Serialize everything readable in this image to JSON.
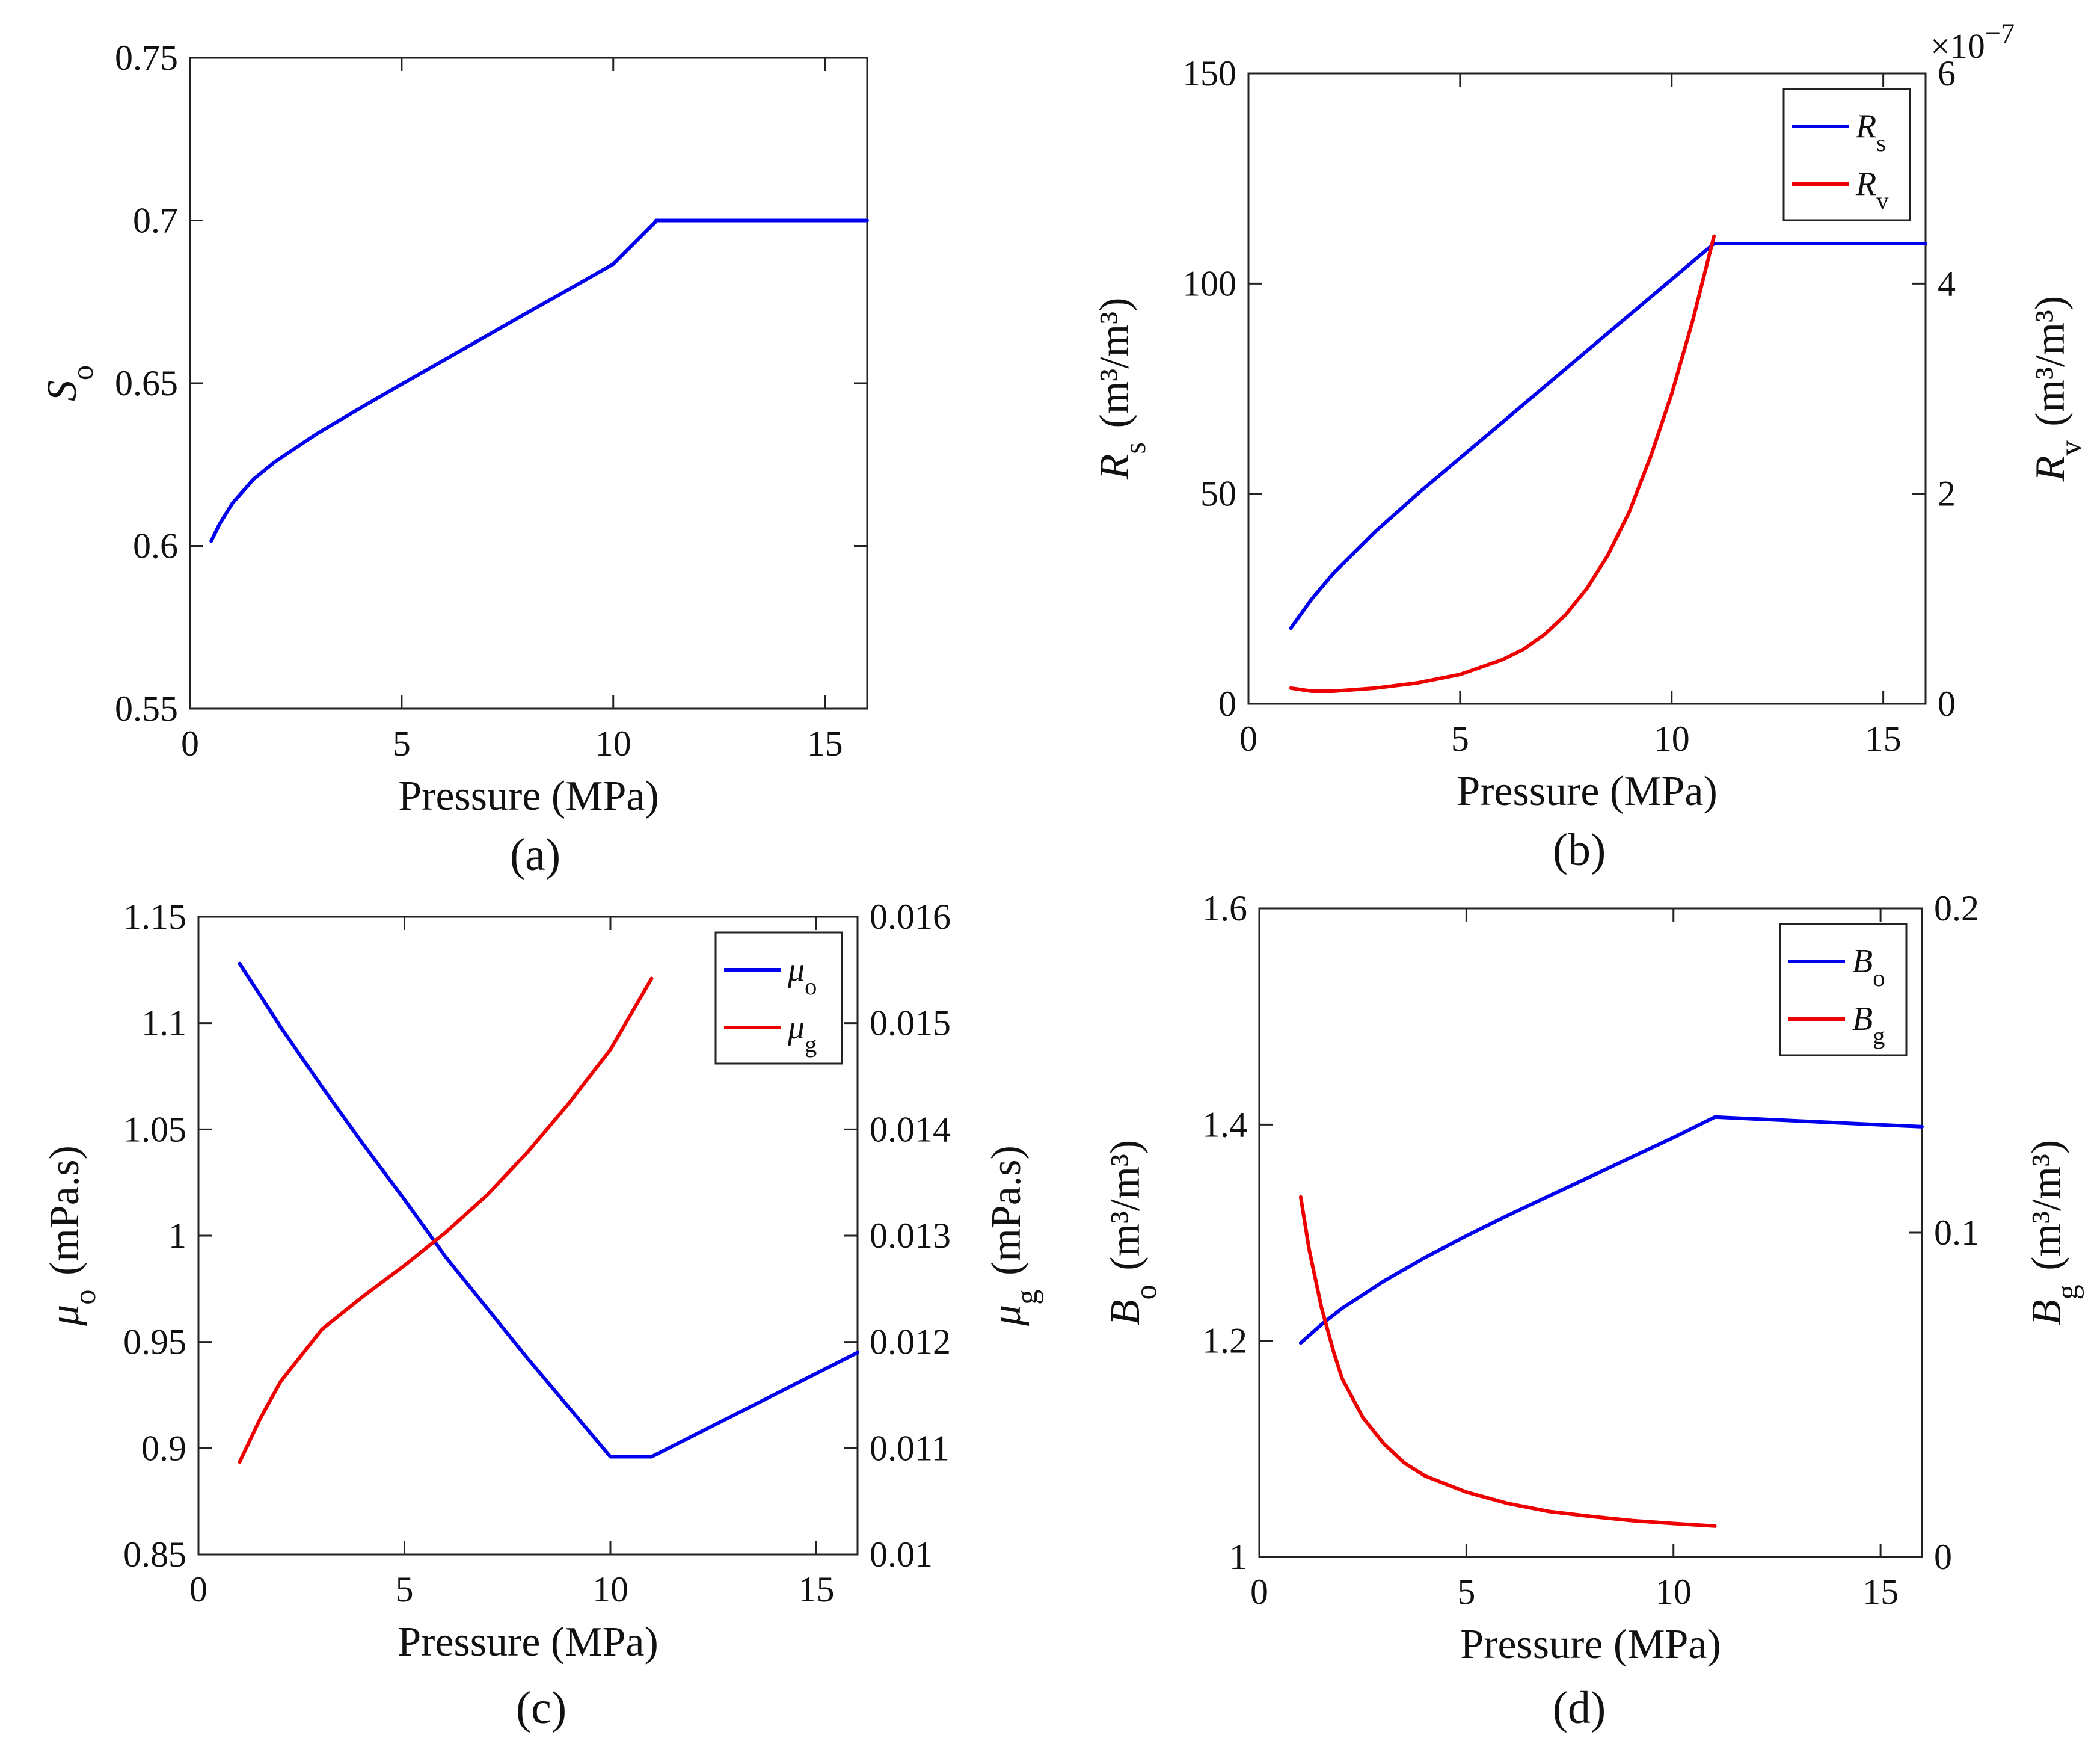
{
  "chart_data": [
    {
      "type": "line",
      "caption": "(a)",
      "xlabel": "Pressure (MPa)",
      "ylabel": {
        "main": "S",
        "sub": "o"
      },
      "xlim": [
        0,
        16
      ],
      "ylim": [
        0.55,
        0.75
      ],
      "xticks": [
        0,
        5,
        10,
        15
      ],
      "xtick_labels": [
        "0",
        "5",
        "10",
        "15"
      ],
      "yticks": [
        0.55,
        0.6,
        0.65,
        0.7,
        0.75
      ],
      "ytick_labels": [
        "0.55",
        "0.6",
        "0.65",
        "0.7",
        "0.75"
      ],
      "series": [
        {
          "name": "So",
          "color": "#0000ee",
          "axis": "left",
          "x": [
            0.5,
            0.7,
            1.0,
            1.5,
            2.0,
            3.0,
            4.0,
            5.0,
            6.0,
            7.0,
            8.0,
            9.0,
            10.0,
            11.0,
            11.01,
            16.0
          ],
          "y": [
            0.6015,
            0.6068,
            0.6131,
            0.6205,
            0.6258,
            0.6345,
            0.6422,
            0.6497,
            0.6571,
            0.6645,
            0.6719,
            0.6792,
            0.6866,
            0.6996,
            0.7,
            0.7
          ]
        }
      ]
    },
    {
      "type": "line",
      "caption": "(b)",
      "xlabel": "Pressure (MPa)",
      "ylabel": {
        "main": "R",
        "sub": "s",
        "unit": " (m³/m³)"
      },
      "ylabel_right": {
        "main": "R",
        "sub": "v",
        "unit": " (m³/m³)"
      },
      "right_axis_multiplier": "×10",
      "right_axis_exponent": "−7",
      "xlim": [
        0,
        16
      ],
      "ylim": [
        0,
        150
      ],
      "ylim_right": [
        0,
        6
      ],
      "xticks": [
        0,
        5,
        10,
        15
      ],
      "xtick_labels": [
        "0",
        "5",
        "10",
        "15"
      ],
      "yticks": [
        0,
        50,
        100,
        150
      ],
      "ytick_labels": [
        "0",
        "50",
        "100",
        "150"
      ],
      "yticks_right": [
        0,
        2,
        4,
        6
      ],
      "ytick_labels_right": [
        "0",
        "2",
        "4",
        "6"
      ],
      "legend": {
        "position": "top-right",
        "entries": [
          {
            "main": "R",
            "sub": "s"
          },
          {
            "main": "R",
            "sub": "v"
          }
        ]
      },
      "series": [
        {
          "name": "Rs",
          "color": "#0000ee",
          "axis": "left",
          "x": [
            1.0,
            1.5,
            2.0,
            3.0,
            4.0,
            5.0,
            6.0,
            7.0,
            8.0,
            9.0,
            10.0,
            11.0,
            16.0
          ],
          "y": [
            18,
            25,
            31,
            41,
            50,
            58.5,
            67,
            75.5,
            84,
            92.5,
            101,
            109.5,
            109.5
          ]
        },
        {
          "name": "Rv",
          "color": "#ee0000",
          "axis": "right",
          "x": [
            1.0,
            1.5,
            2.0,
            3.0,
            4.0,
            5.0,
            6.0,
            6.5,
            7.0,
            7.5,
            8.0,
            8.5,
            9.0,
            9.5,
            10.0,
            10.5,
            11.0
          ],
          "y": [
            0.15,
            0.12,
            0.12,
            0.15,
            0.2,
            0.28,
            0.42,
            0.52,
            0.66,
            0.85,
            1.1,
            1.42,
            1.83,
            2.35,
            2.95,
            3.65,
            4.45
          ]
        }
      ]
    },
    {
      "type": "line",
      "caption": "(c)",
      "xlabel": "Pressure (MPa)",
      "ylabel": {
        "main": "μ",
        "sub": "o",
        "unit": " (mPa.s)"
      },
      "ylabel_right": {
        "main": "μ",
        "sub": "g",
        "unit": " (mPa.s)"
      },
      "xlim": [
        0,
        16
      ],
      "ylim": [
        0.85,
        1.15
      ],
      "ylim_right": [
        0.01,
        0.016
      ],
      "xticks": [
        0,
        5,
        10,
        15
      ],
      "xtick_labels": [
        "0",
        "5",
        "10",
        "15"
      ],
      "yticks": [
        0.85,
        0.9,
        0.95,
        1.0,
        1.05,
        1.1,
        1.15
      ],
      "ytick_labels": [
        "0.85",
        "0.9",
        "0.95",
        "1",
        "1.05",
        "1.1",
        "1.15"
      ],
      "yticks_right": [
        0.01,
        0.011,
        0.012,
        0.013,
        0.014,
        0.015,
        0.016
      ],
      "ytick_labels_right": [
        "0.01",
        "0.011",
        "0.012",
        "0.013",
        "0.014",
        "0.015",
        "0.016"
      ],
      "legend": {
        "position": "top-right",
        "entries": [
          {
            "main": "μ",
            "sub": "o"
          },
          {
            "main": "μ",
            "sub": "g"
          }
        ]
      },
      "series": [
        {
          "name": "μo",
          "color": "#0000ee",
          "axis": "left",
          "x": [
            1.0,
            2.0,
            3.0,
            4.0,
            5.0,
            6.0,
            7.0,
            8.0,
            9.0,
            10.0,
            11.0,
            16.0
          ],
          "y": [
            1.128,
            1.098,
            1.07,
            1.043,
            1.017,
            0.99,
            0.966,
            0.942,
            0.919,
            0.896,
            0.896,
            0.945
          ]
        },
        {
          "name": "μg",
          "color": "#ee0000",
          "axis": "right",
          "x": [
            1.0,
            1.5,
            2.0,
            3.0,
            4.0,
            5.0,
            6.0,
            7.0,
            8.0,
            9.0,
            10.0,
            11.0
          ],
          "y": [
            0.01087,
            0.01128,
            0.01163,
            0.01212,
            0.01243,
            0.01272,
            0.01303,
            0.01338,
            0.01379,
            0.01425,
            0.01475,
            0.01542
          ]
        }
      ]
    },
    {
      "type": "line",
      "caption": "(d)",
      "xlabel": "Pressure (MPa)",
      "ylabel": {
        "main": "B",
        "sub": "o",
        "unit": " (m³/m³)"
      },
      "ylabel_right": {
        "main": "B",
        "sub": "g",
        "unit": " (m³/m³)"
      },
      "xlim": [
        0,
        16
      ],
      "ylim": [
        1.0,
        1.6
      ],
      "ylim_right": [
        0,
        0.2
      ],
      "xticks": [
        0,
        5,
        10,
        15
      ],
      "xtick_labels": [
        "0",
        "5",
        "10",
        "15"
      ],
      "yticks": [
        1.0,
        1.2,
        1.4,
        1.6
      ],
      "ytick_labels": [
        "1",
        "1.2",
        "1.4",
        "1.6"
      ],
      "yticks_right": [
        0,
        0.1,
        0.2
      ],
      "ytick_labels_right": [
        "0",
        "0.1",
        "0.2"
      ],
      "legend": {
        "position": "top-right",
        "entries": [
          {
            "main": "B",
            "sub": "o"
          },
          {
            "main": "B",
            "sub": "g"
          }
        ]
      },
      "series": [
        {
          "name": "Bo",
          "color": "#0000ee",
          "axis": "left",
          "x": [
            1.0,
            1.5,
            2.0,
            3.0,
            4.0,
            5.0,
            6.0,
            7.0,
            8.0,
            9.0,
            10.0,
            11.0,
            16.0
          ],
          "y": [
            1.198,
            1.215,
            1.23,
            1.255,
            1.277,
            1.297,
            1.316,
            1.334,
            1.352,
            1.37,
            1.388,
            1.407,
            1.398
          ]
        },
        {
          "name": "Bg",
          "color": "#ee0000",
          "axis": "right",
          "x": [
            1.0,
            1.2,
            1.5,
            1.8,
            2.0,
            2.5,
            3.0,
            3.5,
            4.0,
            5.0,
            6.0,
            7.0,
            8.0,
            9.0,
            10.0,
            11.0
          ],
          "y": [
            0.111,
            0.095,
            0.077,
            0.063,
            0.055,
            0.043,
            0.035,
            0.029,
            0.025,
            0.02,
            0.0165,
            0.014,
            0.0125,
            0.0112,
            0.0103,
            0.0095
          ]
        }
      ]
    }
  ]
}
